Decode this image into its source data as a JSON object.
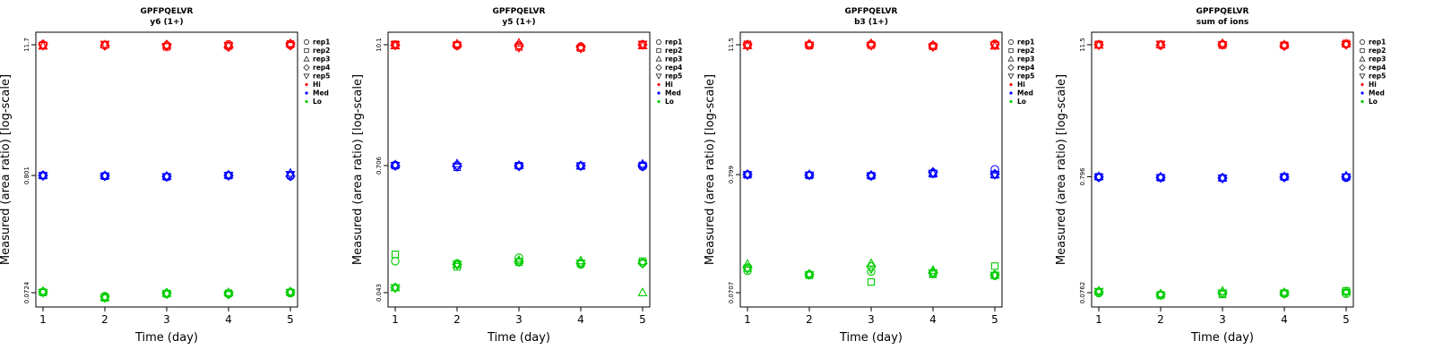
{
  "chart_data": [
    {
      "type": "scatter",
      "title": "GPFPQELVR",
      "subtitle": "y6 (1+)",
      "xlabel": "Time (day)",
      "ylabel": "Measured (area ratio) [log-scale]",
      "y_scale": "log",
      "x_ticks": [
        "1",
        "2",
        "3",
        "4",
        "5"
      ],
      "y_ticks": [
        "0.0724",
        "0.801",
        "11.7"
      ],
      "y_tick_values": [
        0.0724,
        0.801,
        11.7
      ],
      "legend": [
        "rep1",
        "rep2",
        "rep3",
        "rep4",
        "rep5",
        "Hi",
        "Med",
        "Lo"
      ],
      "legend_position": "right",
      "series": [
        {
          "level": "Hi",
          "color": "#ff0000",
          "x": [
            1,
            2,
            3,
            4,
            5
          ],
          "points": [
            [
              11.7,
              11.6,
              11.5,
              11.8,
              11.6
            ],
            [
              11.6,
              11.7,
              11.2,
              11.4,
              11.9
            ],
            [
              11.4,
              11.7,
              11.6,
              11.6,
              12.0
            ],
            [
              11.8,
              11.5,
              11.7,
              11.2,
              11.9
            ],
            [
              11.5,
              11.8,
              11.3,
              11.5,
              11.5
            ]
          ]
        },
        {
          "level": "Med",
          "color": "#0000ff",
          "x": [
            1,
            2,
            3,
            4,
            5
          ],
          "points": [
            [
              0.803,
              0.795,
              0.78,
              0.805,
              0.79
            ],
            [
              0.8,
              0.79,
              0.78,
              0.8,
              0.81
            ],
            [
              0.805,
              0.8,
              0.79,
              0.81,
              0.84
            ],
            [
              0.8,
              0.795,
              0.785,
              0.8,
              0.79
            ],
            [
              0.795,
              0.79,
              0.78,
              0.8,
              0.815
            ]
          ]
        },
        {
          "level": "Lo",
          "color": "#00cc00",
          "x": [
            1,
            2,
            3,
            4,
            5
          ],
          "points": [
            [
              0.0736,
              0.0675,
              0.0705,
              0.0705,
              0.0715
            ],
            [
              0.0726,
              0.065,
              0.071,
              0.0716,
              0.0725
            ],
            [
              0.0745,
              0.066,
              0.0716,
              0.0725,
              0.0736
            ],
            [
              0.0736,
              0.0665,
              0.072,
              0.0716,
              0.0736
            ],
            [
              0.0726,
              0.065,
              0.0705,
              0.0697,
              0.0726
            ]
          ]
        }
      ]
    },
    {
      "type": "scatter",
      "title": "GPFPQELVR",
      "subtitle": "y5 (1+)",
      "xlabel": "Time (day)",
      "ylabel": "Measured (area ratio) [log-scale]",
      "y_scale": "log",
      "x_ticks": [
        "1",
        "2",
        "3",
        "4",
        "5"
      ],
      "y_ticks": [
        "0.043",
        "0.706",
        "10.1"
      ],
      "y_tick_values": [
        0.043,
        0.706,
        10.1
      ],
      "legend": [
        "rep1",
        "rep2",
        "rep3",
        "rep4",
        "rep5",
        "Hi",
        "Med",
        "Lo"
      ],
      "legend_position": "right",
      "series": [
        {
          "level": "Hi",
          "color": "#ff0000",
          "x": [
            1,
            2,
            3,
            4,
            5
          ],
          "points": [
            [
              10.1,
              9.9,
              10.0,
              9.7,
              10.2
            ],
            [
              10.2,
              10.1,
              9.6,
              9.4,
              10.1
            ],
            [
              9.9,
              10.3,
              10.5,
              9.6,
              9.9
            ],
            [
              10.0,
              10.0,
              9.8,
              9.6,
              10.1
            ],
            [
              10.1,
              9.9,
              9.5,
              9.3,
              10.2
            ]
          ]
        },
        {
          "level": "Med",
          "color": "#0000ff",
          "x": [
            1,
            2,
            3,
            4,
            5
          ],
          "points": [
            [
              0.715,
              0.71,
              0.7,
              0.7,
              0.69
            ],
            [
              0.705,
              0.68,
              0.705,
              0.7,
              0.71
            ],
            [
              0.72,
              0.735,
              0.71,
              0.7,
              0.73
            ],
            [
              0.705,
              0.7,
              0.7,
              0.705,
              0.71
            ],
            [
              0.705,
              0.69,
              0.695,
              0.7,
              0.695
            ]
          ]
        },
        {
          "level": "Lo",
          "color": "#00cc00",
          "x": [
            1,
            2,
            3,
            4,
            5
          ],
          "points": [
            [
              0.086,
              0.082,
              0.093,
              0.08,
              0.083
            ],
            [
              0.1,
              0.076,
              0.084,
              0.082,
              0.086
            ],
            [
              0.048,
              0.08,
              0.088,
              0.087,
              0.043
            ],
            [
              0.048,
              0.08,
              0.085,
              0.082,
              0.082
            ],
            [
              0.048,
              0.08,
              0.085,
              0.082,
              0.082
            ]
          ]
        }
      ]
    },
    {
      "type": "scatter",
      "title": "GPFPQELVR",
      "subtitle": "b3 (1+)",
      "xlabel": "Time (day)",
      "ylabel": "Measured (area ratio) [log-scale]",
      "y_scale": "log",
      "x_ticks": [
        "1",
        "2",
        "3",
        "4",
        "5"
      ],
      "y_ticks": [
        "0.0707",
        "0.799",
        "11.5"
      ],
      "y_tick_values": [
        0.0707,
        0.799,
        11.5
      ],
      "legend": [
        "rep1",
        "rep2",
        "rep3",
        "rep4",
        "rep5",
        "Hi",
        "Med",
        "Lo"
      ],
      "legend_position": "right",
      "series": [
        {
          "level": "Hi",
          "color": "#ff0000",
          "x": [
            1,
            2,
            3,
            4,
            5
          ],
          "points": [
            [
              11.4,
              11.5,
              11.6,
              11.3,
              11.7
            ],
            [
              11.6,
              11.3,
              11.4,
              11.1,
              11.5
            ],
            [
              11.3,
              11.7,
              11.8,
              11.4,
              11.2
            ],
            [
              11.5,
              11.6,
              11.5,
              11.3,
              11.6
            ],
            [
              11.2,
              11.4,
              11.3,
              11.0,
              11.4
            ]
          ]
        },
        {
          "level": "Med",
          "color": "#0000ff",
          "x": [
            1,
            2,
            3,
            4,
            5
          ],
          "points": [
            [
              0.8,
              0.79,
              0.78,
              0.83,
              0.89
            ],
            [
              0.795,
              0.785,
              0.78,
              0.81,
              0.795
            ],
            [
              0.805,
              0.8,
              0.79,
              0.82,
              0.8
            ],
            [
              0.8,
              0.795,
              0.785,
              0.84,
              0.81
            ],
            [
              0.795,
              0.79,
              0.775,
              0.82,
              0.8
            ]
          ]
        },
        {
          "level": "Lo",
          "color": "#00cc00",
          "x": [
            1,
            2,
            3,
            4,
            5
          ],
          "points": [
            [
              0.111,
              0.103,
              0.109,
              0.105,
              0.1
            ],
            [
              0.117,
              0.101,
              0.088,
              0.103,
              0.122
            ],
            [
              0.127,
              0.104,
              0.129,
              0.112,
              0.101
            ],
            [
              0.118,
              0.103,
              0.121,
              0.107,
              0.102
            ],
            [
              0.115,
              0.102,
              0.115,
              0.106,
              0.101
            ]
          ]
        }
      ]
    },
    {
      "type": "scatter",
      "title": "GPFPQELVR",
      "subtitle": "sum of ions",
      "xlabel": "Time (day)",
      "ylabel": "Measured (area ratio) [log-scale]",
      "y_scale": "log",
      "x_ticks": [
        "1",
        "2",
        "3",
        "4",
        "5"
      ],
      "y_ticks": [
        "0.0762",
        "0.796",
        "11.5"
      ],
      "y_tick_values": [
        0.0762,
        0.796,
        11.5
      ],
      "legend": [
        "rep1",
        "rep2",
        "rep3",
        "rep4",
        "rep5",
        "Hi",
        "Med",
        "Lo"
      ],
      "legend_position": "right",
      "series": [
        {
          "level": "Hi",
          "color": "#ff0000",
          "x": [
            1,
            2,
            3,
            4,
            5
          ],
          "points": [
            [
              11.5,
              11.4,
              11.6,
              11.3,
              11.6
            ],
            [
              11.6,
              11.6,
              11.4,
              11.4,
              11.8
            ],
            [
              11.4,
              11.5,
              11.8,
              11.5,
              11.7
            ],
            [
              11.5,
              11.4,
              11.6,
              11.3,
              11.6
            ],
            [
              11.4,
              11.6,
              11.5,
              11.2,
              11.5
            ]
          ]
        },
        {
          "level": "Med",
          "color": "#0000ff",
          "x": [
            1,
            2,
            3,
            4,
            5
          ],
          "points": [
            [
              0.79,
              0.785,
              0.775,
              0.79,
              0.78
            ],
            [
              0.795,
              0.78,
              0.775,
              0.795,
              0.79
            ],
            [
              0.8,
              0.795,
              0.78,
              0.8,
              0.81
            ],
            [
              0.79,
              0.785,
              0.775,
              0.79,
              0.795
            ],
            [
              0.785,
              0.78,
              0.77,
              0.785,
              0.79
            ]
          ]
        },
        {
          "level": "Lo",
          "color": "#00cc00",
          "x": [
            1,
            2,
            3,
            4,
            5
          ],
          "points": [
            [
              0.0755,
              0.0735,
              0.0745,
              0.0745,
              0.0745
            ],
            [
              0.0775,
              0.072,
              0.0735,
              0.0755,
              0.079
            ],
            [
              0.079,
              0.0745,
              0.0785,
              0.0765,
              0.078
            ],
            [
              0.0775,
              0.0735,
              0.0765,
              0.0755,
              0.0775
            ],
            [
              0.078,
              0.0725,
              0.0755,
              0.0745,
              0.0765
            ]
          ]
        }
      ]
    }
  ]
}
